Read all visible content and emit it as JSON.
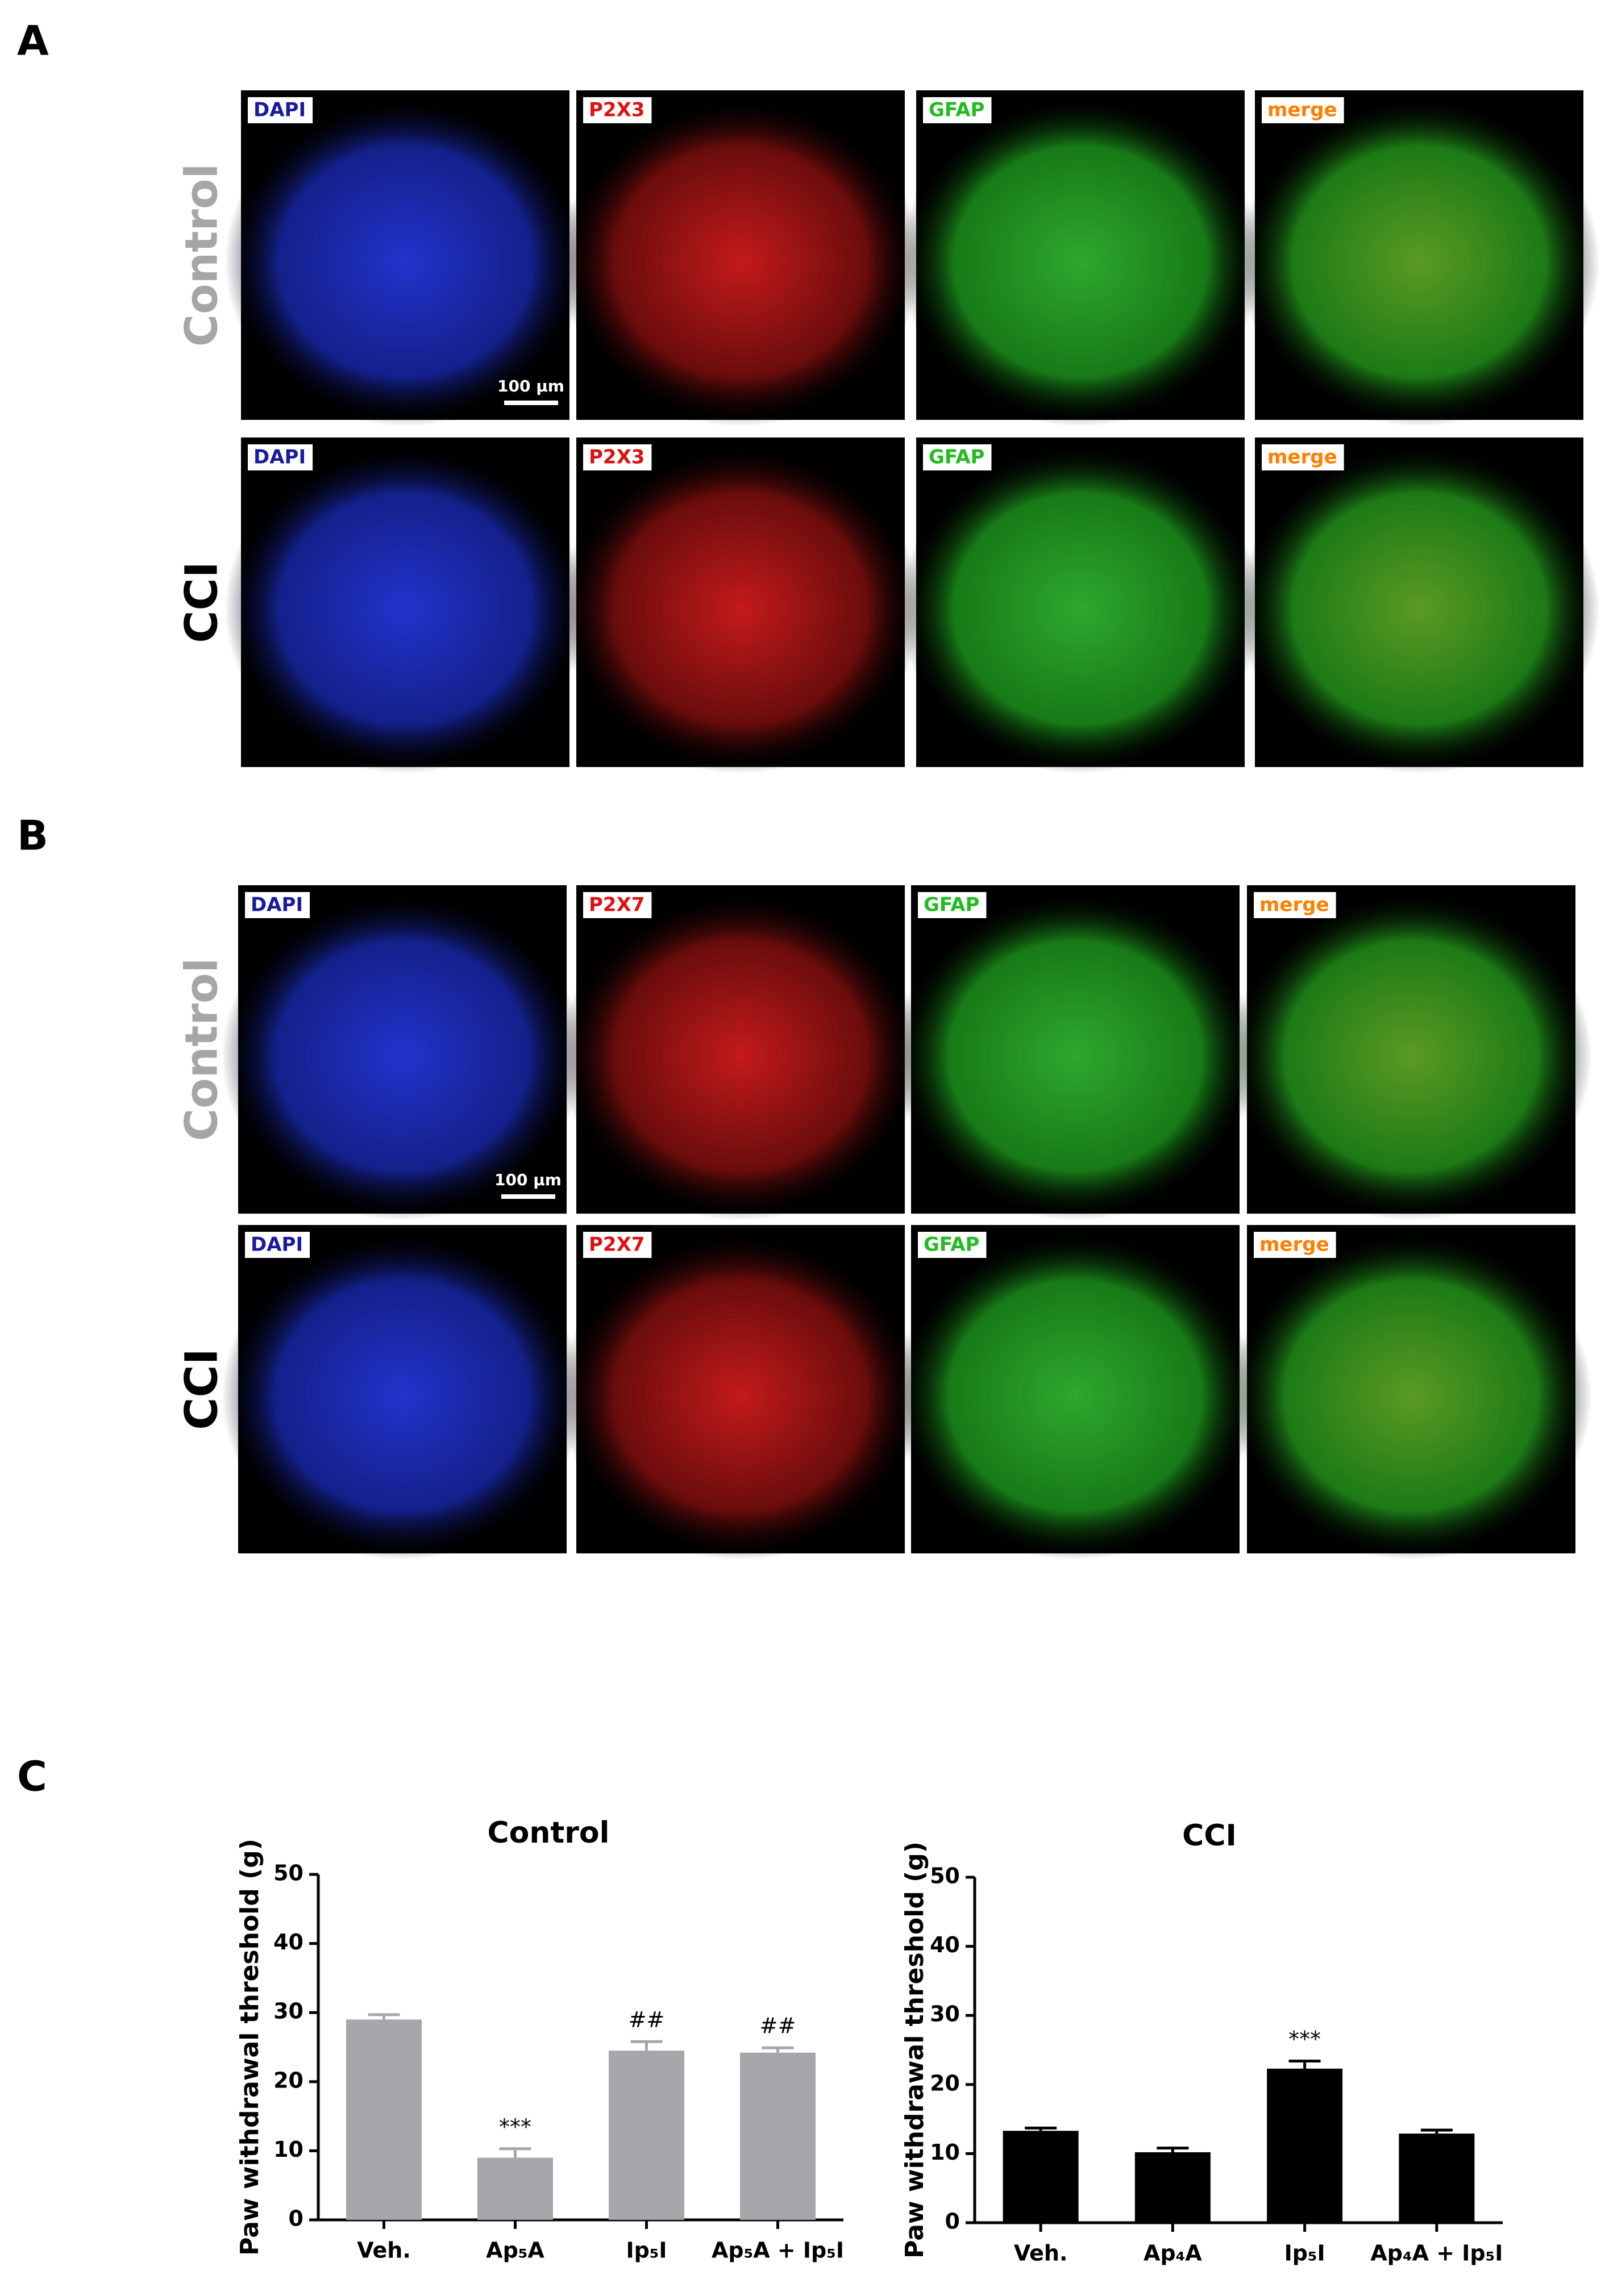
{
  "panel_a": {
    "label": "A",
    "rows": [
      {
        "label": "Control",
        "channels": [
          "DAPI",
          "P2X3",
          "GFAP",
          "merge"
        ],
        "scale_bar": "100 µm"
      },
      {
        "label": "CCI",
        "channels": [
          "DAPI",
          "P2X3",
          "GFAP",
          "merge"
        ]
      }
    ]
  },
  "panel_b": {
    "label": "B",
    "rows": [
      {
        "label": "Control",
        "channels": [
          "DAPI",
          "P2X7",
          "GFAP",
          "merge"
        ],
        "scale_bar": "100 µm"
      },
      {
        "label": "CCI",
        "channels": [
          "DAPI",
          "P2X7",
          "GFAP",
          "merge"
        ]
      }
    ]
  },
  "panel_c": {
    "label": "C"
  },
  "chart_data": [
    {
      "type": "bar",
      "title": "Control",
      "y_label": "Paw withdrawal threshold (g)",
      "categories": [
        "Veh.",
        "Ap₅A",
        "Ip₅I",
        "Ap₅A + Ip₅I"
      ],
      "values": [
        29,
        9,
        24.5,
        24.2
      ],
      "errors": [
        0.7,
        1.3,
        1.3,
        0.7
      ],
      "annotations": [
        null,
        "***",
        "##",
        "##"
      ],
      "color": "#a7a7ab",
      "ylim": [
        0,
        50
      ],
      "yticks": [
        0,
        10,
        20,
        30,
        40,
        50
      ]
    },
    {
      "type": "bar",
      "title": "CCI",
      "y_label": "Paw withdrawal threshold (g)",
      "categories": [
        "Veh.",
        "Ap₄A",
        "Ip₅I",
        "Ap₄A + Ip₅I"
      ],
      "values": [
        13.3,
        10.2,
        22.3,
        12.9
      ],
      "errors": [
        0.4,
        0.6,
        1.1,
        0.5
      ],
      "annotations": [
        null,
        null,
        "***",
        null
      ],
      "color": "#000000",
      "ylim": [
        0,
        50
      ],
      "yticks": [
        0,
        10,
        20,
        30,
        40,
        50
      ]
    }
  ]
}
